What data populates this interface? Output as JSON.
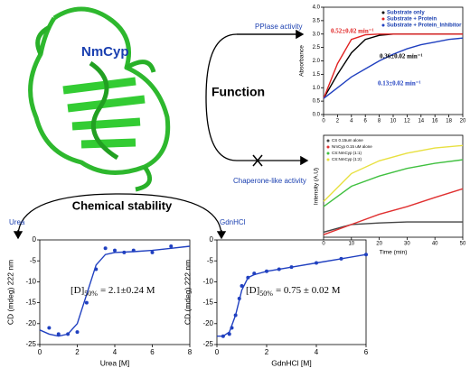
{
  "labels": {
    "protein": "NmCyp",
    "function": "Function",
    "ppiase": "PPIase activity",
    "chaperone": "Chaperone-like activity",
    "stability": "Chemical stability",
    "urea": "Urea",
    "gdn": "GdnHCl"
  },
  "chart_data": [
    {
      "type": "line",
      "ylabel": "Absorbance",
      "xlim": [
        0,
        20
      ],
      "xticks": [
        0,
        2,
        4,
        6,
        8,
        10,
        12,
        14,
        16,
        18,
        20
      ],
      "ylim": [
        0,
        4
      ],
      "yticks": [
        {
          "value": 0,
          "label": "0.0"
        },
        {
          "value": 0.5,
          "label": "0.5"
        },
        {
          "value": 1,
          "label": "1.0"
        },
        {
          "value": 1.5,
          "label": "1.5"
        },
        {
          "value": 2,
          "label": "2.0"
        },
        {
          "value": 2.5,
          "label": "2.5"
        },
        {
          "value": 3,
          "label": "3.0"
        },
        {
          "value": 3.5,
          "label": "3.5"
        },
        {
          "value": 4,
          "label": "4.0"
        }
      ],
      "legend": "top-right",
      "series": [
        {
          "name": "Substrate only",
          "color": "#000000",
          "x": [
            0,
            2,
            4,
            6,
            8,
            10,
            12,
            14,
            16,
            18,
            20
          ],
          "values": [
            0.6,
            1.5,
            2.3,
            2.8,
            2.95,
            3,
            3,
            3,
            3,
            3,
            3
          ]
        },
        {
          "name": "Substrate + Protein",
          "color": "#e02020",
          "x": [
            0,
            2,
            4,
            6,
            8,
            10,
            12,
            14,
            16,
            18,
            20
          ],
          "values": [
            0.6,
            1.9,
            2.8,
            2.97,
            3,
            3,
            3,
            3,
            3,
            3,
            3
          ]
        },
        {
          "name": "Substrate + Protein_Inhibitor",
          "color": "#2040c0",
          "x": [
            0,
            2,
            4,
            6,
            8,
            10,
            12,
            14,
            16,
            18,
            20
          ],
          "values": [
            0.6,
            1,
            1.4,
            1.7,
            2,
            2.25,
            2.45,
            2.6,
            2.7,
            2.8,
            2.85
          ]
        }
      ],
      "annotations": [
        {
          "text": "0.52±0.02 min⁻¹",
          "color": "#e02020"
        },
        {
          "text": "0.36±0.02 min⁻¹",
          "color": "#000000"
        },
        {
          "text": "0.13±0.02 min⁻¹",
          "color": "#2040c0"
        }
      ]
    },
    {
      "type": "line",
      "xlabel": "Time (min)",
      "ylabel": "Intensity (A.U)",
      "xlim": [
        0,
        50
      ],
      "xticks": [
        0,
        10,
        20,
        30,
        40,
        50
      ],
      "ylim": [
        0,
        200
      ],
      "legend": "top-left",
      "series": [
        {
          "name": "CS 0.15um alone",
          "color": "#444444",
          "x": [
            0,
            10,
            20,
            30,
            40,
            50
          ],
          "values": [
            10,
            25,
            28,
            30,
            30,
            30
          ]
        },
        {
          "name": "NmCyp 0.15 uM alone",
          "color": "#e03030",
          "x": [
            0,
            10,
            20,
            30,
            40,
            50
          ],
          "values": [
            5,
            25,
            45,
            60,
            78,
            95
          ]
        },
        {
          "name": "CS:NmCyp (1:1)",
          "color": "#40c040",
          "x": [
            0,
            10,
            20,
            30,
            40,
            50
          ],
          "values": [
            60,
            100,
            120,
            135,
            145,
            152
          ]
        },
        {
          "name": "CS:NmCyp (1:2)",
          "color": "#e8e040",
          "x": [
            0,
            10,
            20,
            30,
            40,
            50
          ],
          "values": [
            70,
            125,
            150,
            165,
            175,
            180
          ]
        }
      ]
    },
    {
      "type": "line",
      "xlabel": "Urea [M]",
      "ylabel": "CD (mdeg) 222 nm",
      "xlim": [
        0,
        8
      ],
      "xticks": [
        0,
        2,
        4,
        6,
        8
      ],
      "ylim": [
        -25,
        0
      ],
      "yticks": [
        -25,
        -20,
        -15,
        -10,
        -5,
        0
      ],
      "series": [
        {
          "mode": "markers",
          "color": "#2040c0",
          "x": [
            0.5,
            1,
            1.5,
            2,
            2.5,
            3,
            3.5,
            4,
            4.5,
            5,
            6,
            7
          ],
          "values": [
            -21,
            -22.5,
            -22.5,
            -22,
            -15,
            -7,
            -2,
            -2.5,
            -3,
            -2.5,
            -3,
            -1.5
          ]
        },
        {
          "mode": "line",
          "color": "#2040c0",
          "x": [
            0,
            0.5,
            1,
            1.5,
            2,
            2.5,
            3,
            3.5,
            4,
            5,
            6,
            7,
            8
          ],
          "values": [
            -21.5,
            -22.5,
            -23,
            -22.5,
            -20,
            -13,
            -6,
            -3.5,
            -3,
            -2.8,
            -2.5,
            -2,
            -1.5
          ]
        }
      ],
      "annotations": [
        {
          "parts": [
            "[D]",
            "50%",
            "= 2.1±0.24 M"
          ],
          "color": "#000000"
        }
      ]
    },
    {
      "type": "line",
      "xlabel": "GdnHCl [M]",
      "ylabel": "CD (mdeg) 222 nm",
      "xlim": [
        0,
        6
      ],
      "xticks": [
        0,
        2,
        4,
        6
      ],
      "ylim": [
        -25,
        0
      ],
      "yticks": [
        -25,
        -20,
        -15,
        -10,
        -5,
        0
      ],
      "series": [
        {
          "mode": "markers",
          "color": "#2040c0",
          "x": [
            0.25,
            0.5,
            0.6,
            0.75,
            0.9,
            1,
            1.25,
            1.5,
            2,
            2.5,
            3,
            4,
            5,
            6
          ],
          "values": [
            -23,
            -22.5,
            -21,
            -18,
            -14,
            -11,
            -9,
            -8,
            -7.5,
            -7,
            -6.5,
            -5.5,
            -4.5,
            -3.5
          ]
        },
        {
          "mode": "line",
          "color": "#2040c0",
          "x": [
            0,
            0.25,
            0.5,
            0.75,
            1,
            1.25,
            1.5,
            2,
            3,
            4,
            5,
            6
          ],
          "values": [
            -23,
            -23,
            -22,
            -18,
            -12,
            -9,
            -8.3,
            -7.5,
            -6.5,
            -5.5,
            -4.5,
            -3.5
          ]
        }
      ],
      "annotations": [
        {
          "parts": [
            "[D]",
            "50%",
            "= 0.75 ± 0.02 M"
          ],
          "color": "#000000"
        }
      ]
    }
  ]
}
